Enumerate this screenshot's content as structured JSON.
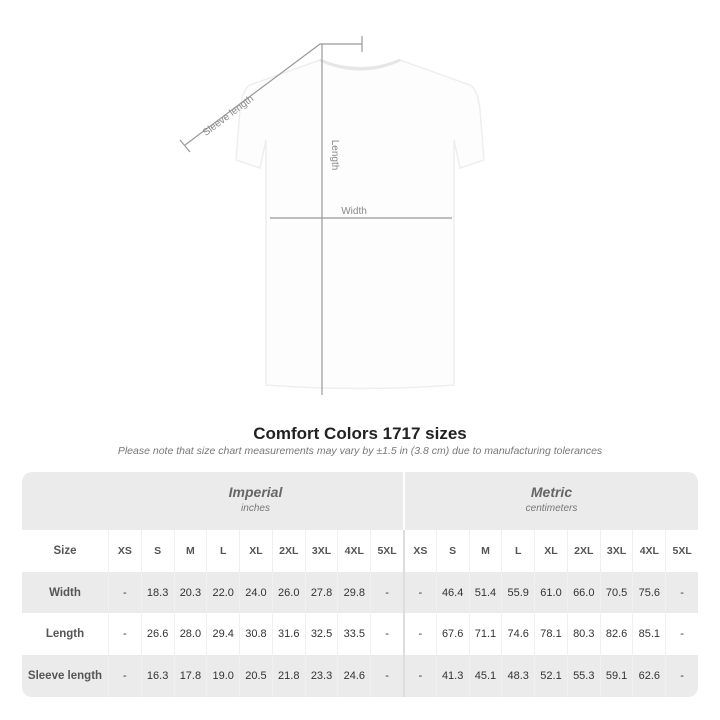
{
  "diagram": {
    "sleeve_label": "Sleeve length",
    "length_label": "Length",
    "width_label": "Width"
  },
  "title": "Comfort Colors 1717 sizes",
  "note": "Please note that size chart measurements may vary by ±1.5 in (3.8 cm) due to manufacturing tolerances",
  "imperial": {
    "heading": "Imperial",
    "unit": "inches"
  },
  "metric": {
    "heading": "Metric",
    "unit": "centimeters"
  },
  "sizes": [
    "XS",
    "S",
    "M",
    "L",
    "XL",
    "2XL",
    "3XL",
    "4XL",
    "5XL"
  ],
  "size_label": "Size",
  "rows": [
    {
      "label": "Width",
      "imperial": [
        "-",
        "18.3",
        "20.3",
        "22.0",
        "24.0",
        "26.0",
        "27.8",
        "29.8",
        "-"
      ],
      "metric": [
        "-",
        "46.4",
        "51.4",
        "55.9",
        "61.0",
        "66.0",
        "70.5",
        "75.6",
        "-"
      ]
    },
    {
      "label": "Length",
      "imperial": [
        "-",
        "26.6",
        "28.0",
        "29.4",
        "30.8",
        "31.6",
        "32.5",
        "33.5",
        "-"
      ],
      "metric": [
        "-",
        "67.6",
        "71.1",
        "74.6",
        "78.1",
        "80.3",
        "82.6",
        "85.1",
        "-"
      ]
    },
    {
      "label": "Sleeve length",
      "imperial": [
        "-",
        "16.3",
        "17.8",
        "19.0",
        "20.5",
        "21.8",
        "23.3",
        "24.6",
        "-"
      ],
      "metric": [
        "-",
        "41.3",
        "45.1",
        "48.3",
        "52.1",
        "55.3",
        "59.1",
        "62.6",
        "-"
      ]
    }
  ]
}
